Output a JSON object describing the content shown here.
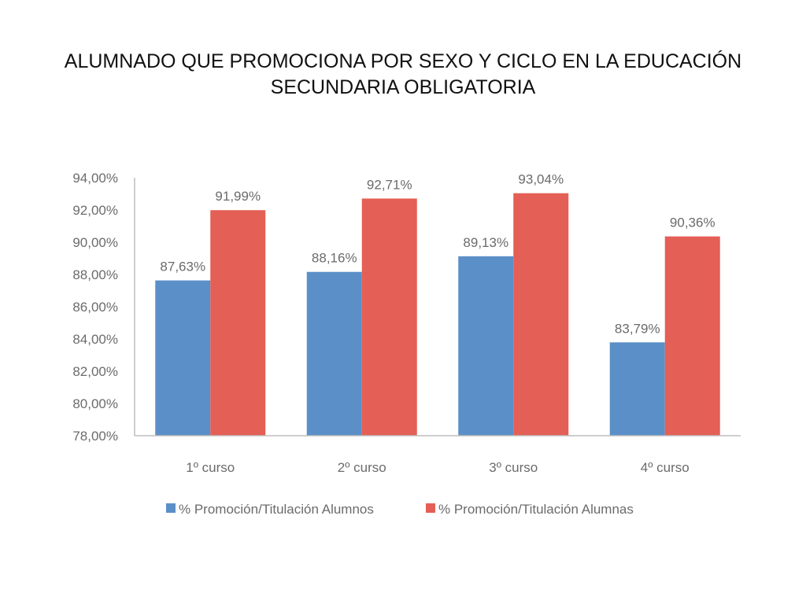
{
  "title": {
    "line1": "ALUMNADO QUE PROMOCIONA POR SEXO Y CICLO EN LA EDUCACIÓN",
    "line2": "SECUNDARIA OBLIGATORIA"
  },
  "chart_data": {
    "type": "bar",
    "title": "ALUMNADO QUE PROMOCIONA POR SEXO Y CICLO EN LA EDUCACIÓN SECUNDARIA OBLIGATORIA",
    "categories": [
      "1º curso",
      "2º curso",
      "3º curso",
      "4º curso"
    ],
    "series": [
      {
        "name": "% Promoción/Titulación Alumnos",
        "color": "#5b8fc7",
        "values": [
          87.63,
          88.16,
          89.13,
          83.79
        ],
        "labels": [
          "87,63%",
          "88,16%",
          "89,13%",
          "83,79%"
        ]
      },
      {
        "name": "% Promoción/Titulación Alumnas",
        "color": "#e45f55",
        "values": [
          91.99,
          92.71,
          93.04,
          90.36
        ],
        "labels": [
          "91,99%",
          "92,71%",
          "93,04%",
          "90,36%"
        ]
      }
    ],
    "ylim": [
      78,
      94
    ],
    "yticks": [
      78,
      80,
      82,
      84,
      86,
      88,
      90,
      92,
      94
    ],
    "ytick_labels": [
      "78,00%",
      "80,00%",
      "82,00%",
      "84,00%",
      "86,00%",
      "88,00%",
      "90,00%",
      "92,00%",
      "94,00%"
    ],
    "xlabel": "",
    "ylabel": "",
    "grid": false,
    "legend_position": "bottom"
  }
}
